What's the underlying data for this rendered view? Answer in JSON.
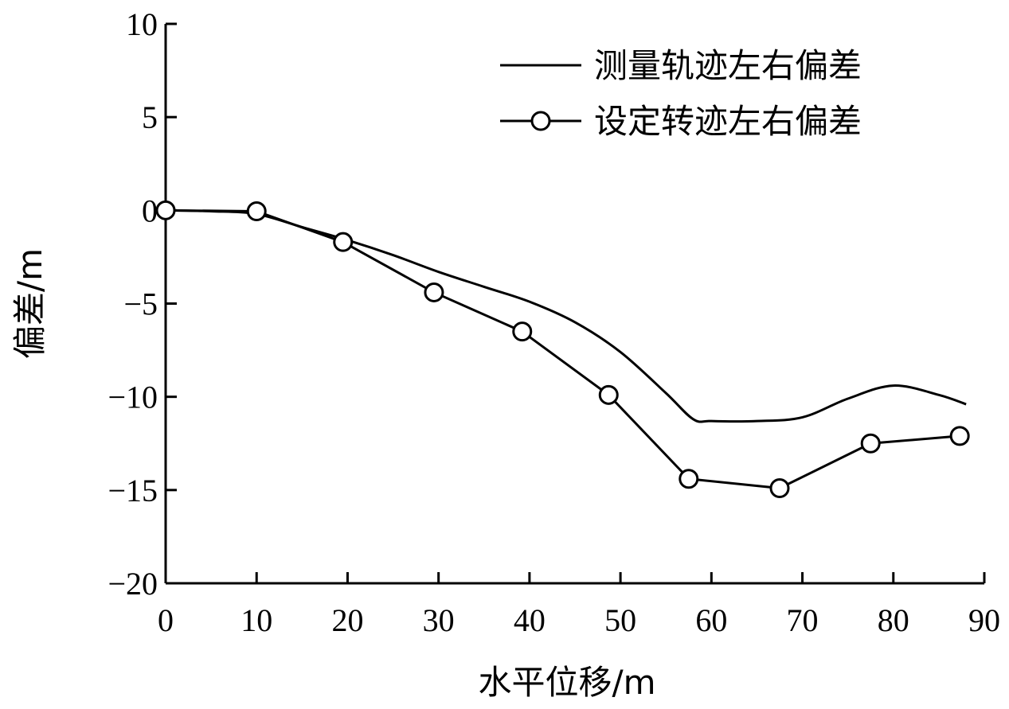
{
  "chart_data": {
    "type": "line",
    "title": "",
    "xlabel": "水平位移/m",
    "ylabel": "偏差/m",
    "xlim": [
      0,
      90
    ],
    "ylim": [
      -20,
      10
    ],
    "x_ticks": [
      0,
      10,
      20,
      30,
      40,
      50,
      60,
      70,
      80,
      90
    ],
    "y_ticks": [
      10,
      5,
      0,
      -5,
      -10,
      -15,
      -20
    ],
    "x_tick_labels": [
      "0",
      "10",
      "20",
      "30",
      "40",
      "50",
      "60",
      "70",
      "80",
      "90"
    ],
    "y_tick_labels": [
      "10",
      "5",
      "0",
      "−5",
      "−10",
      "−15",
      "−20"
    ],
    "grid": false,
    "legend_position": "top-right",
    "series": [
      {
        "name": "测量轨迹左右偏差",
        "marker": "none",
        "x": [
          0,
          5,
          10,
          15,
          20,
          25,
          30,
          35,
          40,
          45,
          50,
          55,
          58,
          60,
          65,
          70,
          75,
          80,
          85,
          88
        ],
        "y": [
          0,
          -0.05,
          -0.2,
          -0.9,
          -1.6,
          -2.4,
          -3.3,
          -4.1,
          -4.9,
          -6.0,
          -7.6,
          -9.8,
          -11.2,
          -11.3,
          -11.3,
          -11.1,
          -10.1,
          -9.4,
          -9.9,
          -10.4
        ]
      },
      {
        "name": "设定转迹左右偏差",
        "marker": "open-circle",
        "x": [
          0,
          10,
          19.5,
          29.5,
          39.2,
          48.7,
          57.5,
          67.5,
          77.5,
          87.3
        ],
        "y": [
          0,
          -0.05,
          -1.7,
          -4.4,
          -6.5,
          -9.9,
          -14.4,
          -14.9,
          -12.5,
          -12.1
        ]
      }
    ]
  }
}
